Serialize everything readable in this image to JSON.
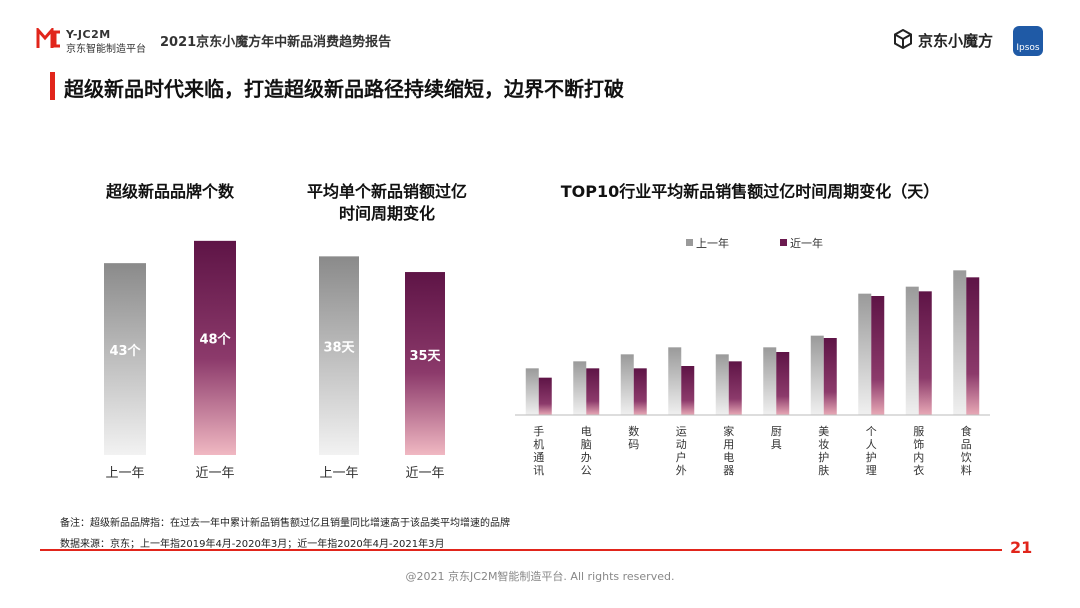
{
  "header": {
    "logo_top": "Y-JC2M",
    "logo_sub": "京东智能制造平台",
    "report_title": "2021京东小魔方年中新品消费趋势报告",
    "jd_name": "京东小魔方",
    "ipsos": "Ipsos"
  },
  "main_title": "超级新品时代来临，打造超级新品路径持续缩短，边界不断打破",
  "page_number": "21",
  "colors": {
    "accent": "#e1251b",
    "last_year": "#9a9a9a",
    "recent_year": "#6b1a4f"
  },
  "chart_data": [
    {
      "type": "bar",
      "title": "超级新品品牌个数",
      "categories": [
        "上一年",
        "近一年"
      ],
      "values": [
        43,
        48
      ],
      "data_labels": [
        "43个",
        "48个"
      ],
      "ylim": [
        0,
        52
      ]
    },
    {
      "type": "bar",
      "title_line1": "平均单个新品销额过亿",
      "title_line2": "时间周期变化",
      "categories": [
        "上一年",
        "近一年"
      ],
      "values": [
        38,
        35
      ],
      "data_labels": [
        "38天",
        "35天"
      ],
      "ylim": [
        0,
        44
      ]
    },
    {
      "type": "bar",
      "title": "TOP10行业平均新品销售额过亿时间周期变化（天）",
      "categories": [
        "手机通讯",
        "电脑办公",
        "数码",
        "运动户外",
        "家用电器",
        "厨具",
        "美妆护肤",
        "个人护理",
        "服饰内衣",
        "食品饮料"
      ],
      "series": [
        {
          "name": "上一年",
          "values": [
            20,
            23,
            26,
            29,
            26,
            29,
            34,
            52,
            55,
            62
          ]
        },
        {
          "name": "近一年",
          "values": [
            16,
            20,
            20,
            21,
            23,
            27,
            33,
            51,
            53,
            59
          ]
        }
      ],
      "legend": "top-left",
      "ylim": [
        0,
        75
      ]
    }
  ],
  "footnotes": {
    "note": "备注：超级新品品牌指：在过去一年中累计新品销售额过亿且销量同比增速高于该品类平均增速的品牌",
    "source": "数据来源：京东；上一年指2019年4月-2020年3月；近一年指2020年4月-2021年3月"
  },
  "copyright": "@2021 京东JC2M智能制造平台. All rights reserved."
}
